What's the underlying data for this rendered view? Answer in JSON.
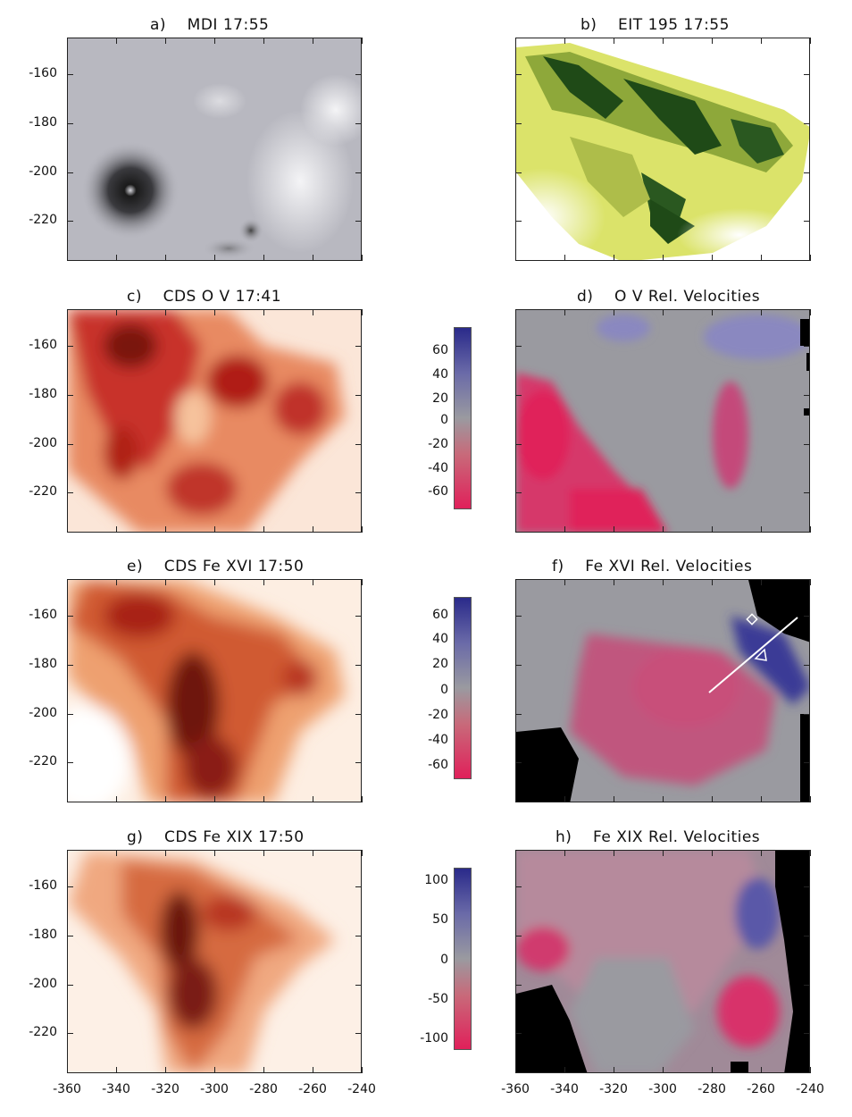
{
  "panels": {
    "a": {
      "title": "a)    MDI 17:55"
    },
    "b": {
      "title": "b)    EIT 195 17:55"
    },
    "c": {
      "title": "c)    CDS O V 17:41"
    },
    "d": {
      "title": "d)    O V Rel. Velocities"
    },
    "e": {
      "title": "e)    CDS Fe XVI 17:50"
    },
    "f": {
      "title": "f)    Fe XVI Rel. Velocities"
    },
    "g": {
      "title": "g)    CDS Fe XIX 17:50"
    },
    "h": {
      "title": "h)    Fe XIX Rel. Velocities"
    }
  },
  "axes": {
    "y_ticks": [
      "-160",
      "-180",
      "-200",
      "-220"
    ],
    "x_ticks": [
      "-360",
      "-340",
      "-320",
      "-300",
      "-280",
      "-260",
      "-240"
    ]
  },
  "colorbars": {
    "cb1": {
      "labels": [
        "60",
        "40",
        "20",
        "0",
        "-20",
        "-40",
        "-60"
      ]
    },
    "cb2": {
      "labels": [
        "60",
        "40",
        "20",
        "0",
        "-20",
        "-40",
        "-60"
      ]
    },
    "cb3": {
      "labels": [
        "100",
        "50",
        "0",
        "-50",
        "-100"
      ]
    }
  },
  "colors": {
    "mdi_gray": "#bcbcc4",
    "eit_green": "#1f4a17",
    "eit_yellow": "#dbe36a",
    "cds_red": "#b8201c",
    "cds_orange": "#f0a068",
    "vel_gray": "#9a9aa0",
    "vel_blue": "#3a3a96",
    "vel_red": "#e0205a"
  }
}
